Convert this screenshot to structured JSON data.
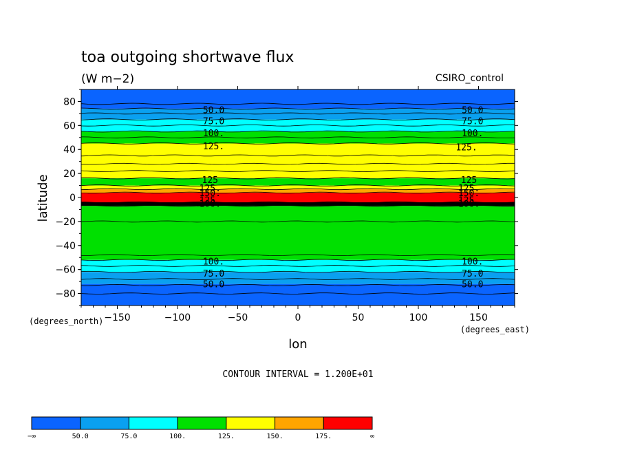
{
  "chart_data": {
    "type": "heatmap",
    "title": "toa outgoing shortwave flux",
    "units": "(W m−2)",
    "dataset": "CSIRO_control",
    "xlabel": "lon",
    "ylabel": "latitude",
    "x_unit_label": "(degrees_east)",
    "y_unit_label": "(degrees_north)",
    "xlim": [
      -180,
      180
    ],
    "ylim": [
      -90,
      90
    ],
    "x_ticks": [
      -150,
      -100,
      -50,
      0,
      50,
      100,
      150
    ],
    "y_ticks": [
      80,
      60,
      40,
      20,
      0,
      -20,
      -40,
      -60,
      -80
    ],
    "x_tick_labels": [
      "−150",
      "−100",
      "−50",
      "0",
      "50",
      "100",
      "150"
    ],
    "y_tick_labels": [
      "80",
      "60",
      "40",
      "20",
      "0",
      "−20",
      "−40",
      "−60",
      "−80"
    ],
    "contour_interval_label": "CONTOUR INTERVAL = 1.200E+01",
    "colorbar": {
      "boundaries": [
        "−∞",
        "50.0",
        "75.0",
        "100.",
        "125.",
        "150.",
        "175.",
        "∞"
      ],
      "colors": [
        "#0a64ff",
        "#0aa0f0",
        "#00ffff",
        "#00e000",
        "#ffff00",
        "#ffa500",
        "#ff0000"
      ]
    },
    "bands": [
      {
        "lat_min": -90,
        "lat_max": -72,
        "color": "#0a64ff"
      },
      {
        "lat_min": -72,
        "lat_max": -62,
        "color": "#0aa0f0"
      },
      {
        "lat_min": -62,
        "lat_max": -52,
        "color": "#00ffff"
      },
      {
        "lat_min": -52,
        "lat_max": -7,
        "color": "#00e000"
      },
      {
        "lat_min": -7,
        "lat_max": -4,
        "color": "#000000"
      },
      {
        "lat_min": -4,
        "lat_max": 4,
        "color": "#ff0000"
      },
      {
        "lat_min": 4,
        "lat_max": 7,
        "color": "#ffa500"
      },
      {
        "lat_min": 7,
        "lat_max": 10,
        "color": "#ffff00"
      },
      {
        "lat_min": 10,
        "lat_max": 16,
        "color": "#00e000"
      },
      {
        "lat_min": 16,
        "lat_max": 45,
        "color": "#ffff00"
      },
      {
        "lat_min": 45,
        "lat_max": 55,
        "color": "#00e000"
      },
      {
        "lat_min": 55,
        "lat_max": 65,
        "color": "#00ffff"
      },
      {
        "lat_min": 65,
        "lat_max": 74,
        "color": "#0aa0f0"
      },
      {
        "lat_min": 74,
        "lat_max": 90,
        "color": "#0a64ff"
      }
    ],
    "contour_lines": [
      -80,
      -73,
      -68,
      -62,
      -57,
      -52,
      -48,
      -20,
      -7,
      -4,
      4,
      7,
      10,
      16,
      22,
      28,
      35,
      45,
      50,
      55,
      60,
      65,
      70,
      74,
      78
    ],
    "contour_labels": [
      {
        "text": "50.0",
        "lat": 73,
        "lon": -70
      },
      {
        "text": "75.0",
        "lat": 64,
        "lon": -70
      },
      {
        "text": "100.",
        "lat": 54,
        "lon": -70
      },
      {
        "text": "125.",
        "lat": 43,
        "lon": -70
      },
      {
        "text": "125",
        "lat": 15,
        "lon": -73
      },
      {
        "text": "125.",
        "lat": 8,
        "lon": -73
      },
      {
        "text": "150.",
        "lat": 4,
        "lon": -73
      },
      {
        "text": "125.",
        "lat": -2,
        "lon": -73
      },
      {
        "text": "100.",
        "lat": -5,
        "lon": -73
      },
      {
        "text": "100.",
        "lat": -53,
        "lon": -70
      },
      {
        "text": "75.0",
        "lat": -63,
        "lon": -70
      },
      {
        "text": "50.0",
        "lat": -72,
        "lon": -70
      },
      {
        "text": "50.0",
        "lat": 73,
        "lon": 145
      },
      {
        "text": "75.0",
        "lat": 64,
        "lon": 145
      },
      {
        "text": "100.",
        "lat": 54,
        "lon": 145
      },
      {
        "text": "125.",
        "lat": 42,
        "lon": 140
      },
      {
        "text": "125",
        "lat": 15,
        "lon": 142
      },
      {
        "text": "125.",
        "lat": 8,
        "lon": 142
      },
      {
        "text": "150.",
        "lat": 4,
        "lon": 142
      },
      {
        "text": "125.",
        "lat": -2,
        "lon": 142
      },
      {
        "text": "100.",
        "lat": -5,
        "lon": 142
      },
      {
        "text": "100.",
        "lat": -53,
        "lon": 145
      },
      {
        "text": "75.0",
        "lat": -63,
        "lon": 145
      },
      {
        "text": "50.0",
        "lat": -72,
        "lon": 145
      }
    ]
  }
}
